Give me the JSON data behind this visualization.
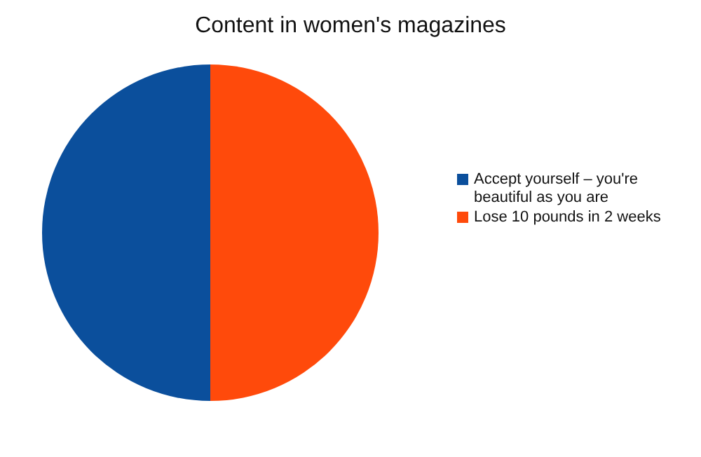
{
  "chart_data": {
    "type": "pie",
    "title": "Content in women's magazines",
    "categories": [
      "Accept yourself – you're beautiful as you are",
      "Lose 10 pounds in 2 weeks"
    ],
    "values": [
      50,
      50
    ],
    "colors": [
      "#0b4f9c",
      "#ff4a0b"
    ],
    "legend": "right"
  }
}
